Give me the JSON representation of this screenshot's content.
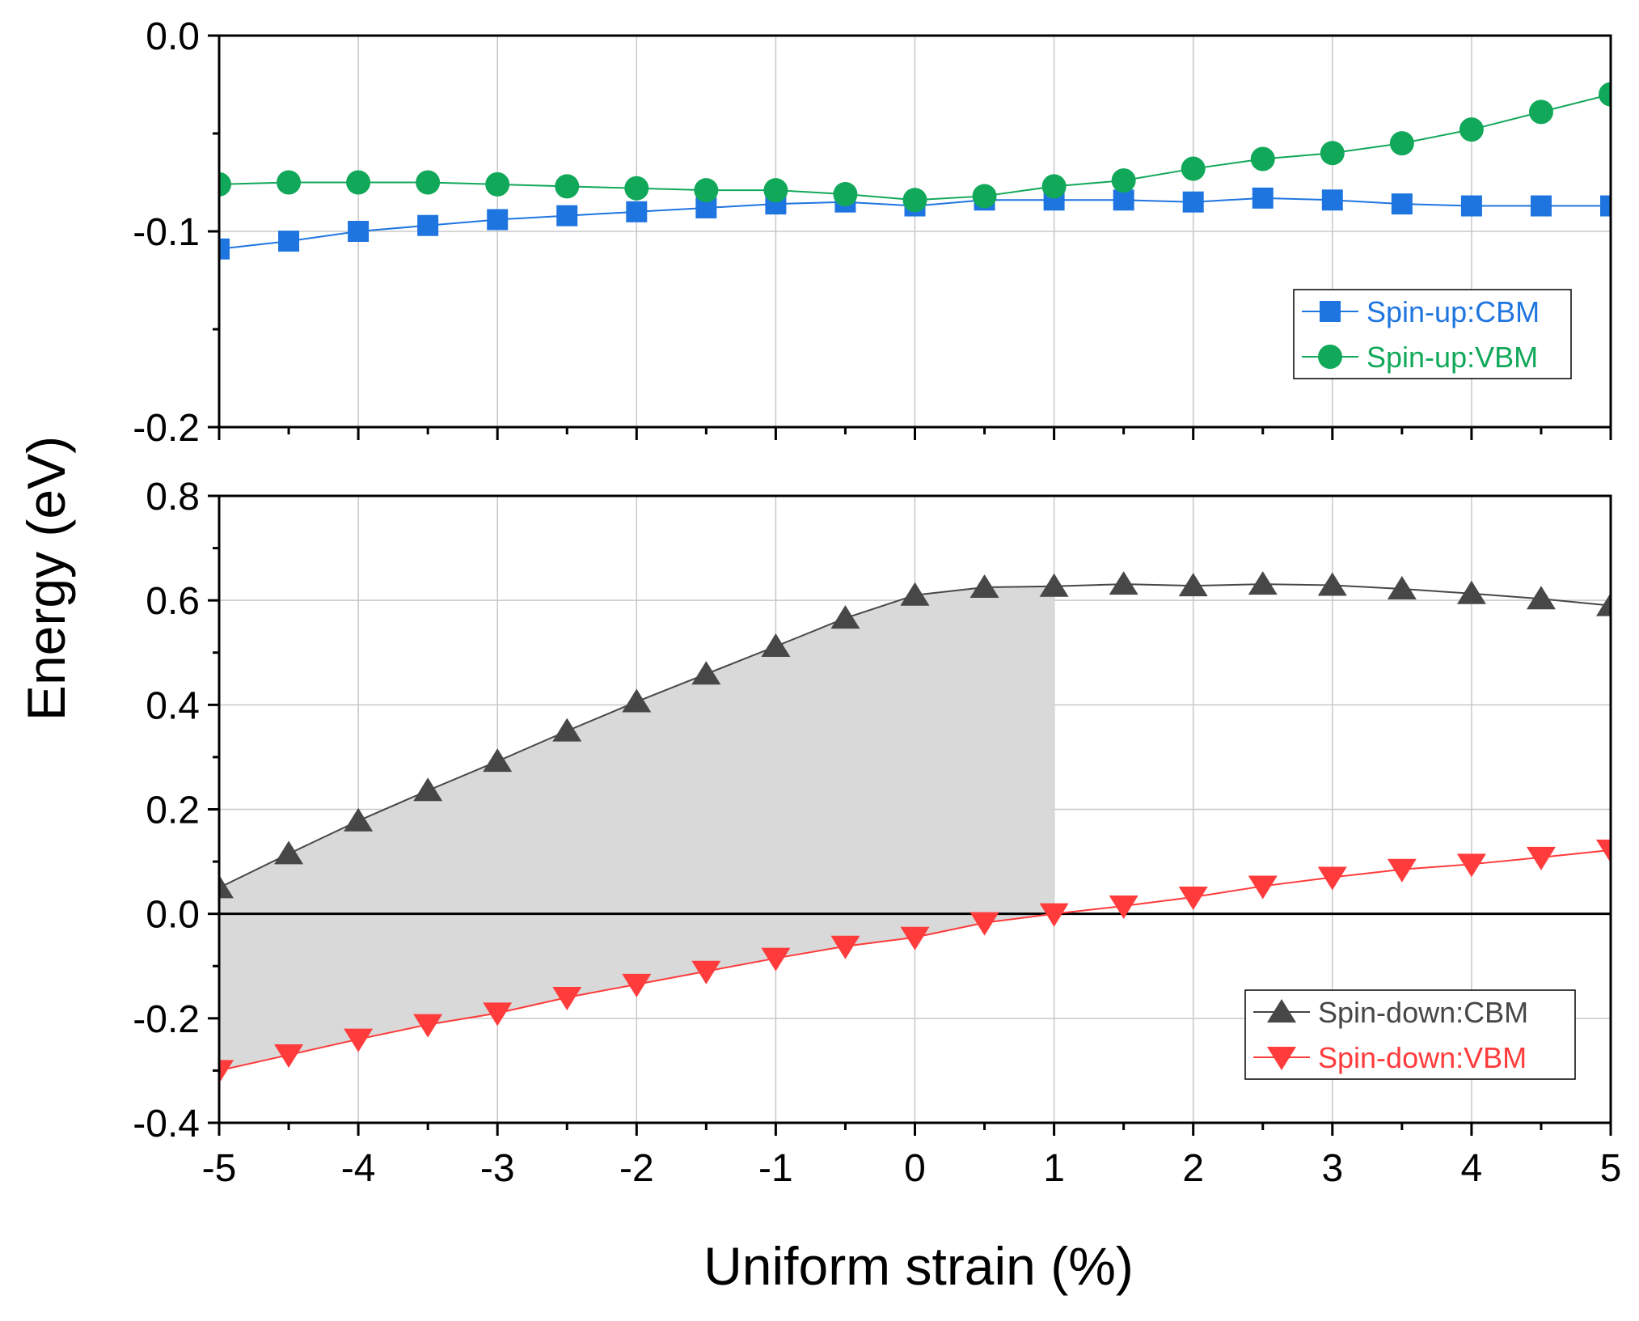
{
  "chart_data": {
    "type": "line",
    "ylabel": "Energy (eV)",
    "xlabel": "Uniform strain (%)",
    "xlim": [
      -5,
      5
    ],
    "x_ticks": [
      "-5",
      "-4",
      "-3",
      "-2",
      "-1",
      "0",
      "1",
      "2",
      "3",
      "4",
      "5"
    ],
    "panels": [
      {
        "name": "spin-up",
        "ylim": [
          -0.2,
          0.0
        ],
        "y_ticks": [
          "0.0",
          "-0.1",
          "-0.2"
        ],
        "legend_position": "right",
        "series": [
          {
            "name": "Spin-up:CBM",
            "color": "#1f75e0",
            "marker": "square",
            "x": [
              -5,
              -4.5,
              -4,
              -3.5,
              -3,
              -2.5,
              -2,
              -1.5,
              -1,
              -0.5,
              0,
              0.5,
              1,
              1.5,
              2,
              2.5,
              3,
              3.5,
              4,
              4.5,
              5
            ],
            "values": [
              -0.109,
              -0.105,
              -0.1,
              -0.097,
              -0.094,
              -0.092,
              -0.09,
              -0.088,
              -0.086,
              -0.085,
              -0.087,
              -0.084,
              -0.084,
              -0.084,
              -0.085,
              -0.083,
              -0.084,
              -0.086,
              -0.087,
              -0.087,
              -0.087
            ]
          },
          {
            "name": "Spin-up:VBM",
            "color": "#11a85a",
            "marker": "circle",
            "x": [
              -5,
              -4.5,
              -4,
              -3.5,
              -3,
              -2.5,
              -2,
              -1.5,
              -1,
              -0.5,
              0,
              0.5,
              1,
              1.5,
              2,
              2.5,
              3,
              3.5,
              4,
              4.5,
              5
            ],
            "values": [
              -0.076,
              -0.075,
              -0.075,
              -0.075,
              -0.076,
              -0.077,
              -0.078,
              -0.079,
              -0.079,
              -0.081,
              -0.084,
              -0.082,
              -0.077,
              -0.074,
              -0.068,
              -0.063,
              -0.06,
              -0.055,
              -0.048,
              -0.039,
              -0.03
            ]
          }
        ]
      },
      {
        "name": "spin-down",
        "ylim": [
          -0.4,
          0.8
        ],
        "y_ticks": [
          "0.8",
          "0.6",
          "0.4",
          "0.2",
          "0.0",
          "-0.2",
          "-0.4"
        ],
        "legend_position": "bottom-right",
        "zero_line": true,
        "shaded_region_x": [
          -5,
          1
        ],
        "series": [
          {
            "name": "Spin-down:CBM",
            "color": "#474747",
            "marker": "triangle-up",
            "x": [
              -5,
              -4.5,
              -4,
              -3.5,
              -3,
              -2.5,
              -2,
              -1.5,
              -1,
              -0.5,
              0,
              0.5,
              1,
              1.5,
              2,
              2.5,
              3,
              3.5,
              4,
              4.5,
              5
            ],
            "values": [
              0.05,
              0.115,
              0.178,
              0.236,
              0.292,
              0.35,
              0.406,
              0.459,
              0.512,
              0.566,
              0.61,
              0.625,
              0.627,
              0.631,
              0.628,
              0.631,
              0.629,
              0.622,
              0.613,
              0.603,
              0.59
            ]
          },
          {
            "name": "Spin-down:VBM",
            "color": "#ff3b3b",
            "marker": "triangle-down",
            "x": [
              -5,
              -4.5,
              -4,
              -3.5,
              -3,
              -2.5,
              -2,
              -1.5,
              -1,
              -0.5,
              0,
              0.5,
              1,
              1.5,
              2,
              2.5,
              3,
              3.5,
              4,
              4.5,
              5
            ],
            "values": [
              -0.3,
              -0.27,
              -0.24,
              -0.212,
              -0.19,
              -0.16,
              -0.135,
              -0.11,
              -0.085,
              -0.062,
              -0.045,
              -0.017,
              0.0,
              0.015,
              0.032,
              0.053,
              0.07,
              0.085,
              0.095,
              0.108,
              0.122
            ]
          }
        ]
      }
    ]
  }
}
